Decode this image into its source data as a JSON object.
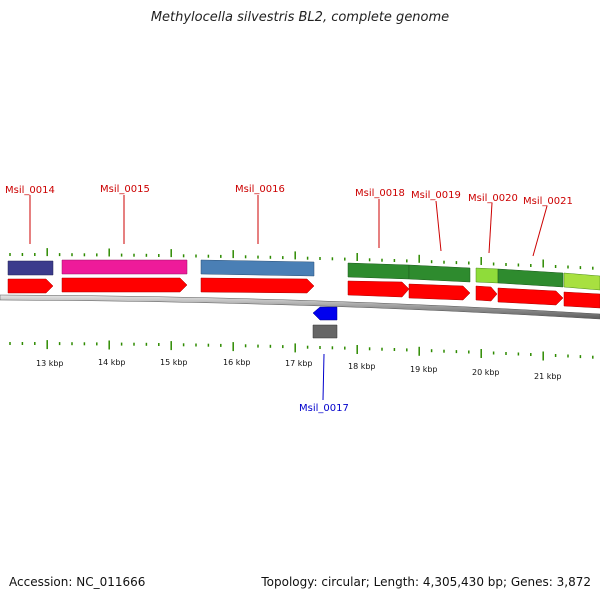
{
  "title": "Methylocella silvestris BL2, complete genome",
  "accession": "Accession: NC_011666",
  "stats": "Topology: circular; Length: 4,305,430 bp; Genes: 3,872",
  "colors": {
    "gene_label_forward": "#cc0000",
    "gene_label_reverse": "#0000cc",
    "cds_arrow": "#ff0000",
    "reverse_arrow": "#0000ff",
    "tick": "#2e8b00",
    "backbone": "#888888"
  },
  "genes": [
    {
      "id": "Msil_0014",
      "strand": "+"
    },
    {
      "id": "Msil_0015",
      "strand": "+"
    },
    {
      "id": "Msil_0016",
      "strand": "+"
    },
    {
      "id": "Msil_0017",
      "strand": "-"
    },
    {
      "id": "Msil_0018",
      "strand": "+"
    },
    {
      "id": "Msil_0019",
      "strand": "+"
    },
    {
      "id": "Msil_0020",
      "strand": "+"
    },
    {
      "id": "Msil_0021",
      "strand": "+"
    }
  ],
  "scale_labels": [
    "13 kbp",
    "14 kbp",
    "15 kbp",
    "16 kbp",
    "17 kbp",
    "18 kbp",
    "19 kbp",
    "20 kbp",
    "21 kbp"
  ]
}
